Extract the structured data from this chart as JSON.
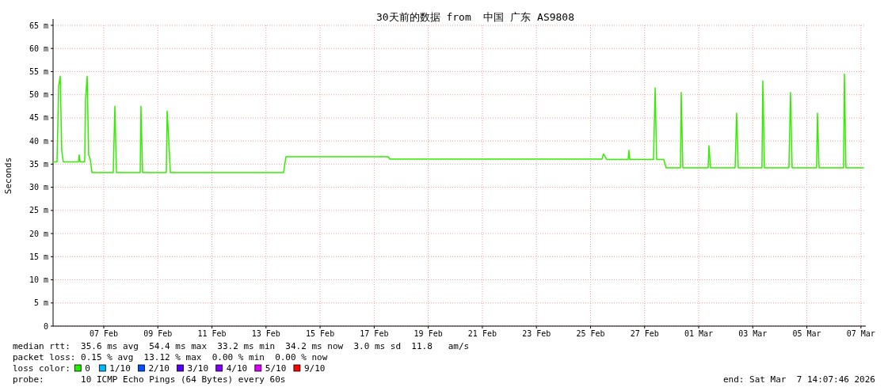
{
  "chart_data": {
    "type": "line",
    "title": "30天前的数据 from  中国 广东 AS9808",
    "ylabel": "Seconds",
    "annotations": [
      "median rtt:  35.6 ms avg  54.4 ms max  33.2 ms min  34.2 ms now  3.0 ms sd  11.8   am/s",
      "packet loss: 0.15 % avg  13.12 % max  0.00 % min  0.00 % now",
      "loss color:",
      "0",
      "1/10",
      "2/10",
      "3/10",
      "4/10",
      "5/10",
      "9/10",
      "probe:       10 ICMP Echo Pings (64 Bytes) every 60s",
      "end: Sat Mar  7 14:07:46 2026"
    ],
    "xlim": [
      "2026-02-05T03:00",
      "2026-03-07T04:20"
    ],
    "xticks": [
      {
        "value": "2026-02-07",
        "label": "07 Feb"
      },
      {
        "value": "2026-02-09",
        "label": "09 Feb"
      },
      {
        "value": "2026-02-11",
        "label": "11 Feb"
      },
      {
        "value": "2026-02-13",
        "label": "13 Feb"
      },
      {
        "value": "2026-02-15",
        "label": "15 Feb"
      },
      {
        "value": "2026-02-17",
        "label": "17 Feb"
      },
      {
        "value": "2026-02-19",
        "label": "19 Feb"
      },
      {
        "value": "2026-02-21",
        "label": "21 Feb"
      },
      {
        "value": "2026-02-23",
        "label": "23 Feb"
      },
      {
        "value": "2026-02-25",
        "label": "25 Feb"
      },
      {
        "value": "2026-02-27",
        "label": "27 Feb"
      },
      {
        "value": "2026-03-01",
        "label": "01 Mar"
      },
      {
        "value": "2026-03-03",
        "label": "03 Mar"
      },
      {
        "value": "2026-03-05",
        "label": "05 Mar"
      },
      {
        "value": "2026-03-07",
        "label": "07 Mar"
      }
    ],
    "ylim": [
      0,
      65
    ],
    "yticks": [
      0,
      {
        "value": 5,
        "label": "5 m"
      },
      {
        "value": 10,
        "label": "10 m"
      },
      {
        "value": 15,
        "label": "15 m"
      },
      {
        "value": 20,
        "label": "20 m"
      },
      {
        "value": 25,
        "label": "25 m"
      },
      {
        "value": 30,
        "label": "30 m"
      },
      {
        "value": 35,
        "label": "35 m"
      },
      {
        "value": 40,
        "label": "40 m"
      },
      {
        "value": 45,
        "label": "45 m"
      },
      {
        "value": 50,
        "label": "50 m"
      },
      {
        "value": 55,
        "label": "55 m"
      },
      {
        "value": 60,
        "label": "60 m"
      },
      {
        "value": 65,
        "label": "65 m"
      }
    ],
    "grid": true,
    "line_style": "solid",
    "marker": "none",
    "x": [
      "2026-02-05T03:00",
      "2026-02-05T06:30",
      "2026-02-05T08:00",
      "2026-02-05T09:20",
      "2026-02-05T10:40",
      "2026-02-05T12:05",
      "2026-02-06T01:30",
      "2026-02-06T02:10",
      "2026-02-06T02:55",
      "2026-02-06T07:05",
      "2026-02-06T07:50",
      "2026-02-06T09:15",
      "2026-02-06T10:35",
      "2026-02-06T12:00",
      "2026-02-06T13:30",
      "2026-02-07T08:25",
      "2026-02-07T09:50",
      "2026-02-07T11:15",
      "2026-02-08T08:20",
      "2026-02-08T09:00",
      "2026-02-08T10:25",
      "2026-02-09T07:30",
      "2026-02-09T08:15",
      "2026-02-09T09:40",
      "2026-02-09T11:05",
      "2026-02-13T15:35",
      "2026-02-13T17:40",
      "2026-02-17T12:25",
      "2026-02-17T13:50",
      "2026-02-25T10:10",
      "2026-02-25T11:35",
      "2026-02-25T14:25",
      "2026-02-26T09:25",
      "2026-02-26T10:05",
      "2026-02-26T10:50",
      "2026-02-27T07:55",
      "2026-02-27T09:20",
      "2026-02-27T10:40",
      "2026-02-27T17:00",
      "2026-02-27T19:05",
      "2026-02-28T07:50",
      "2026-02-28T08:30",
      "2026-02-28T09:55",
      "2026-03-01T08:25",
      "2026-03-01T09:05",
      "2026-03-01T10:30",
      "2026-03-02T08:20",
      "2026-03-02T09:40",
      "2026-03-02T11:05",
      "2026-03-03T08:10",
      "2026-03-03T08:55",
      "2026-03-03T10:20",
      "2026-03-04T08:05",
      "2026-03-04T09:30",
      "2026-03-04T10:55",
      "2026-03-05T08:40",
      "2026-03-05T09:25",
      "2026-03-05T10:50",
      "2026-03-06T08:35",
      "2026-03-06T09:20",
      "2026-03-06T10:40",
      "2026-03-07T02:10"
    ],
    "series": [
      {
        "color": "#33ee00",
        "values": [
          35.5,
          35.5,
          52,
          54,
          38,
          35.5,
          35.5,
          37,
          35.5,
          35.5,
          49,
          54,
          37,
          36,
          33.2,
          33.2,
          47.5,
          33.2,
          33.2,
          47.5,
          33.2,
          33.2,
          46.5,
          40,
          33.2,
          33.2,
          36.6,
          36.6,
          36.1,
          36.1,
          37.2,
          36,
          36,
          38,
          36,
          36,
          51.5,
          36,
          36,
          34.2,
          34.2,
          50.5,
          34.2,
          34.2,
          39,
          34.2,
          34.2,
          46,
          34.2,
          34.2,
          53,
          34.2,
          34.2,
          50.5,
          34.2,
          34.2,
          46,
          34.2,
          34.2,
          54.5,
          34.2,
          34.2
        ]
      }
    ]
  }
}
